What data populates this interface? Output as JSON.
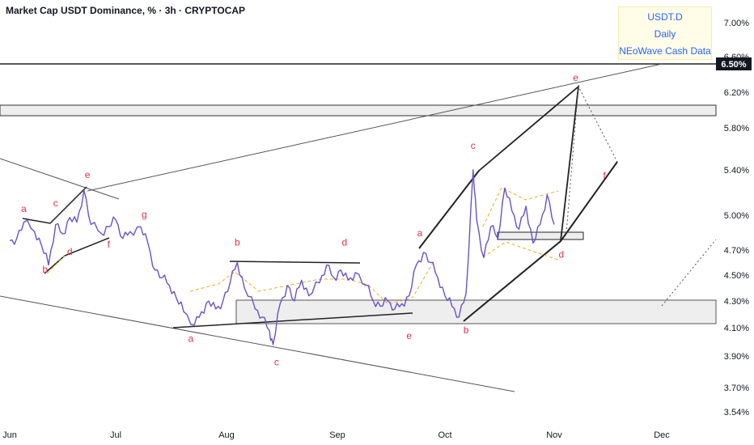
{
  "header": {
    "title": "Market Cap USDT Dominance, % · 3h · CRYPTOCAP"
  },
  "info_box": {
    "line1": "USDT.D",
    "line2": "Daily",
    "line3": "NEoWave Cash Data"
  },
  "colors": {
    "price_line": "#6a52c8",
    "wave_label": "#e0314b",
    "dash_line": "#f5a623",
    "text": "#131722",
    "box_fill": "#eeeeee",
    "box_border": "#333333"
  },
  "chart_data": {
    "type": "line",
    "title": "Market Cap USDT Dominance, % · 3h · CRYPTOCAP",
    "y_unit": "%",
    "y_ticks": [
      "7.00%",
      "6.60%",
      "6.20%",
      "5.80%",
      "5.40%",
      "5.00%",
      "4.70%",
      "4.50%",
      "4.30%",
      "4.10%",
      "3.90%",
      "3.70%",
      "3.54%"
    ],
    "x_ticks": [
      "Jun",
      "Jul",
      "Aug",
      "Sep",
      "Oct",
      "Nov",
      "Dec"
    ],
    "current_price_label": "6.50%",
    "grid": false,
    "series": [
      {
        "points": [
          [
            "Jun 1",
            4.78
          ],
          [
            "Jun 3",
            4.8
          ],
          [
            "Jun 5",
            4.94
          ],
          [
            "Jun 8",
            4.86
          ],
          [
            "Jun 10",
            4.74
          ],
          [
            "Jun 12",
            4.58
          ],
          [
            "Jun 14",
            4.92
          ],
          [
            "Jun 16",
            4.84
          ],
          [
            "Jun 18",
            4.98
          ],
          [
            "Jun 20",
            4.94
          ],
          [
            "Jun 22",
            5.22
          ],
          [
            "Jun 24",
            4.92
          ],
          [
            "Jun 27",
            4.84
          ],
          [
            "Jun 29",
            4.9
          ],
          [
            "Jul 1",
            4.96
          ],
          [
            "Jul 3",
            4.8
          ],
          [
            "Jul 5",
            4.86
          ],
          [
            "Jul 8",
            4.9
          ],
          [
            "Jul 10",
            4.76
          ],
          [
            "Jul 12",
            4.54
          ],
          [
            "Jul 14",
            4.48
          ],
          [
            "Jul 16",
            4.42
          ],
          [
            "Jul 18",
            4.32
          ],
          [
            "Jul 20",
            4.22
          ],
          [
            "Jul 23",
            4.12
          ],
          [
            "Jul 25",
            4.22
          ],
          [
            "Jul 27",
            4.3
          ],
          [
            "Jul 29",
            4.24
          ],
          [
            "Jul 31",
            4.3
          ],
          [
            "Aug 2",
            4.44
          ],
          [
            "Aug 4",
            4.6
          ],
          [
            "Aug 6",
            4.4
          ],
          [
            "Aug 9",
            4.24
          ],
          [
            "Aug 11",
            4.18
          ],
          [
            "Aug 13",
            4.08
          ],
          [
            "Aug 14",
            3.98
          ],
          [
            "Aug 16",
            4.28
          ],
          [
            "Aug 18",
            4.42
          ],
          [
            "Aug 20",
            4.3
          ],
          [
            "Aug 22",
            4.46
          ],
          [
            "Aug 24",
            4.34
          ],
          [
            "Aug 27",
            4.44
          ],
          [
            "Aug 29",
            4.58
          ],
          [
            "Aug 31",
            4.48
          ],
          [
            "Sep 2",
            4.54
          ],
          [
            "Sep 4",
            4.46
          ],
          [
            "Sep 6",
            4.52
          ],
          [
            "Sep 9",
            4.42
          ],
          [
            "Sep 11",
            4.3
          ],
          [
            "Sep 13",
            4.26
          ],
          [
            "Sep 15",
            4.3
          ],
          [
            "Sep 17",
            4.24
          ],
          [
            "Sep 19",
            4.28
          ],
          [
            "Sep 21",
            4.34
          ],
          [
            "Sep 23",
            4.58
          ],
          [
            "Sep 25",
            4.68
          ],
          [
            "Sep 27",
            4.6
          ],
          [
            "Sep 29",
            4.48
          ],
          [
            "Oct 1",
            4.34
          ],
          [
            "Oct 3",
            4.26
          ],
          [
            "Oct 5",
            4.18
          ],
          [
            "Oct 7",
            4.36
          ],
          [
            "Oct 9",
            5.4
          ],
          [
            "Oct 10",
            4.96
          ],
          [
            "Oct 12",
            4.64
          ],
          [
            "Oct 14",
            4.9
          ],
          [
            "Oct 16",
            4.8
          ],
          [
            "Oct 18",
            5.24
          ],
          [
            "Oct 20",
            5.04
          ],
          [
            "Oct 22",
            4.88
          ],
          [
            "Oct 24",
            5.08
          ],
          [
            "Oct 26",
            4.76
          ],
          [
            "Oct 28",
            4.92
          ],
          [
            "Oct 30",
            5.18
          ],
          [
            "Nov 1",
            4.92
          ]
        ]
      }
    ],
    "wave_labels": [
      {
        "text": "a",
        "x": "Jun 5",
        "y": 5.03
      },
      {
        "text": "b",
        "x": "Jun 11",
        "y": 4.52
      },
      {
        "text": "c",
        "x": "Jun 14",
        "y": 5.08
      },
      {
        "text": "d",
        "x": "Jun 18",
        "y": 4.66
      },
      {
        "text": "e",
        "x": "Jun 23",
        "y": 5.33
      },
      {
        "text": "f",
        "x": "Jun 29",
        "y": 4.72
      },
      {
        "text": "g",
        "x": "Jul 9",
        "y": 4.98
      },
      {
        "text": "a",
        "x": "Jul 22",
        "y": 4.0
      },
      {
        "text": "b",
        "x": "Aug 4",
        "y": 4.74
      },
      {
        "text": "c",
        "x": "Aug 15",
        "y": 3.84
      },
      {
        "text": "d",
        "x": "Sep 3",
        "y": 4.74
      },
      {
        "text": "e",
        "x": "Sep 21",
        "y": 4.02
      },
      {
        "text": "a",
        "x": "Sep 24",
        "y": 4.82
      },
      {
        "text": "b",
        "x": "Oct 7",
        "y": 4.06
      },
      {
        "text": "c",
        "x": "Oct 9",
        "y": 5.6
      },
      {
        "text": "d",
        "x": "Nov 3",
        "y": 4.64
      },
      {
        "text": "e",
        "x": "Nov 7",
        "y": 6.32
      },
      {
        "text": "f",
        "x": "Nov 15",
        "y": 5.32
      }
    ]
  }
}
